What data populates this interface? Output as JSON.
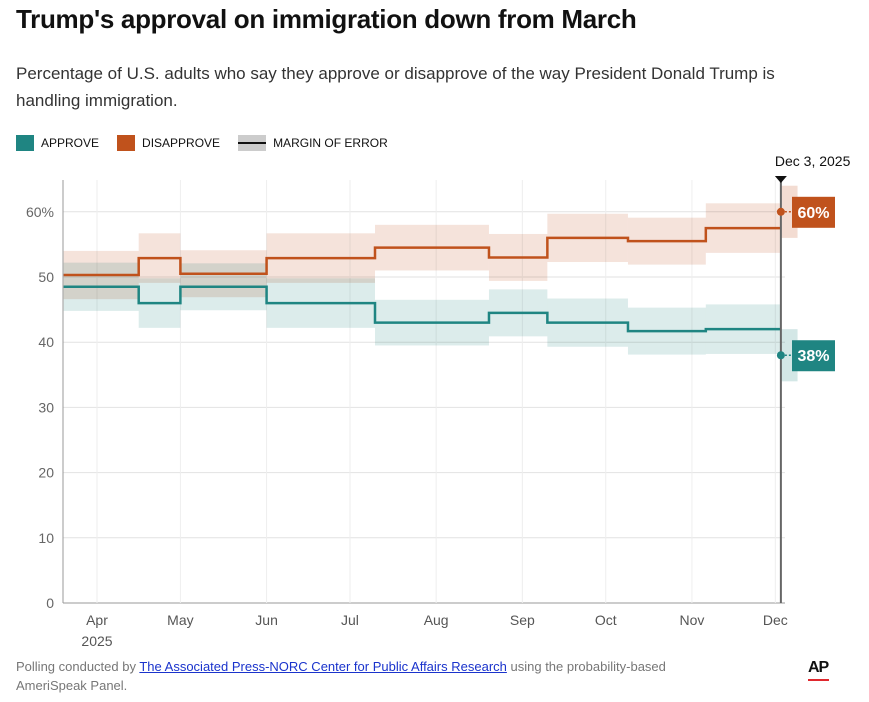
{
  "title": "Trump's approval on immigration down from March",
  "subtitle": "Percentage of U.S. adults who say they approve or disapprove of the way President Donald Trump is handling immigration.",
  "legend": {
    "approve": "APPROVE",
    "disapprove": "DISAPPROVE",
    "moe": "MARGIN OF ERROR"
  },
  "colors": {
    "approve": "#1f8582",
    "disapprove": "#c0521c",
    "approve_band": "#d3e7e6",
    "disapprove_band": "#f3dcd2"
  },
  "footer": {
    "prefix": "Polling conducted by ",
    "link": "The Associated Press-NORC Center for Public Affairs Research",
    "suffix": " using the probability-based AmeriSpeak Panel."
  },
  "logo": "AP",
  "chart_data": {
    "type": "line",
    "step": true,
    "title": "Trump's approval on immigration down from March",
    "ylabel": "",
    "ylim": [
      0,
      65
    ],
    "xlim": [
      "2025-03-20",
      "2025-12-09"
    ],
    "yticks": [
      0,
      10,
      20,
      30,
      40,
      50,
      60
    ],
    "ytick_labels": [
      "0",
      "10",
      "20",
      "30",
      "40",
      "50",
      "60%"
    ],
    "xticks": [
      {
        "date": "2025-04-01",
        "label": "Apr",
        "sub": "2025"
      },
      {
        "date": "2025-05-01",
        "label": "May"
      },
      {
        "date": "2025-06-01",
        "label": "Jun"
      },
      {
        "date": "2025-07-01",
        "label": "Jul"
      },
      {
        "date": "2025-08-01",
        "label": "Aug"
      },
      {
        "date": "2025-09-01",
        "label": "Sep"
      },
      {
        "date": "2025-10-01",
        "label": "Oct"
      },
      {
        "date": "2025-11-01",
        "label": "Nov"
      },
      {
        "date": "2025-12-01",
        "label": "Dec"
      }
    ],
    "segments": [
      "2025-03-20",
      "2025-04-16",
      "2025-05-01",
      "2025-06-01",
      "2025-07-10",
      "2025-08-20",
      "2025-09-10",
      "2025-10-09",
      "2025-11-06",
      "2025-12-03"
    ],
    "series": [
      {
        "name": "Approve",
        "values": [
          48.5,
          46,
          48.5,
          46,
          43,
          44.5,
          43,
          41.7,
          42
        ],
        "moe": [
          3.7,
          3.8,
          3.6,
          3.8,
          3.5,
          3.6,
          3.7,
          3.6,
          3.8
        ]
      },
      {
        "name": "Disapprove",
        "values": [
          50.3,
          52.9,
          50.5,
          52.9,
          54.5,
          53,
          56,
          55.5,
          57.5
        ],
        "moe": [
          3.7,
          3.8,
          3.6,
          3.8,
          3.5,
          3.6,
          3.7,
          3.6,
          3.8
        ]
      }
    ],
    "latest": {
      "date": "2025-12-03",
      "label": "Dec 3, 2025",
      "approve": 38,
      "approve_label": "38%",
      "disapprove": 60,
      "disapprove_label": "60%",
      "moe": 4,
      "band_end": "2025-12-09"
    }
  }
}
